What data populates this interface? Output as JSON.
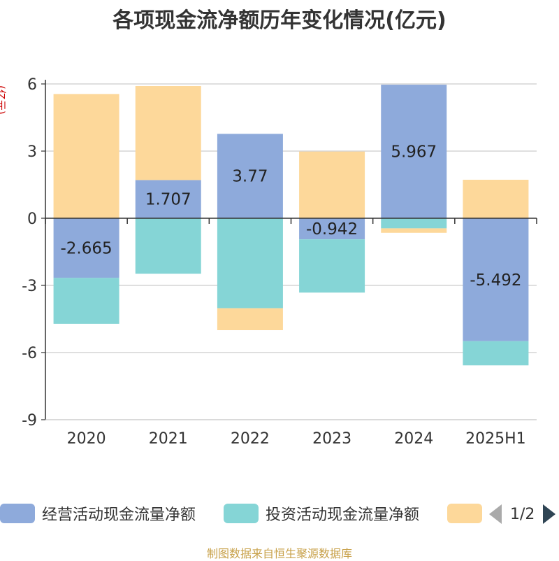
{
  "title": "各项现金流净额历年变化情况(亿元)",
  "unit": "(亿元)",
  "source": "制图数据来自恒生聚源数据库",
  "legend": {
    "items": [
      {
        "label": "经营活动现金流量净额",
        "color": "#8eaadb"
      },
      {
        "label": "投资活动现金流量净额",
        "color": "#85d5d6"
      },
      {
        "label": "",
        "color": "#fdd89a"
      }
    ],
    "page": "1/2"
  },
  "chart_data": {
    "type": "bar",
    "stacked": true,
    "categories": [
      "2020",
      "2021",
      "2022",
      "2023",
      "2024",
      "2025H1"
    ],
    "yticks": [
      6,
      3,
      0,
      -3,
      -6,
      -9
    ],
    "ylim": [
      -9,
      6
    ],
    "grid": true,
    "legend_position": "bottom",
    "series": [
      {
        "name": "经营活动现金流量净额",
        "color": "#8eaadb",
        "values": [
          -2.665,
          1.707,
          3.77,
          -0.942,
          5.967,
          -5.492
        ],
        "labels": [
          "-2.665",
          "1.707",
          "3.77",
          "-0.942",
          "5.967",
          "-5.492"
        ]
      },
      {
        "name": "投资活动现金流量净额",
        "color": "#85d5d6",
        "values": [
          -2.05,
          -2.48,
          -4.02,
          -2.38,
          -0.45,
          -1.08
        ]
      },
      {
        "color": "#fdd89a",
        "values": [
          5.55,
          4.2,
          -0.98,
          2.98,
          -0.2,
          1.72
        ]
      }
    ]
  }
}
